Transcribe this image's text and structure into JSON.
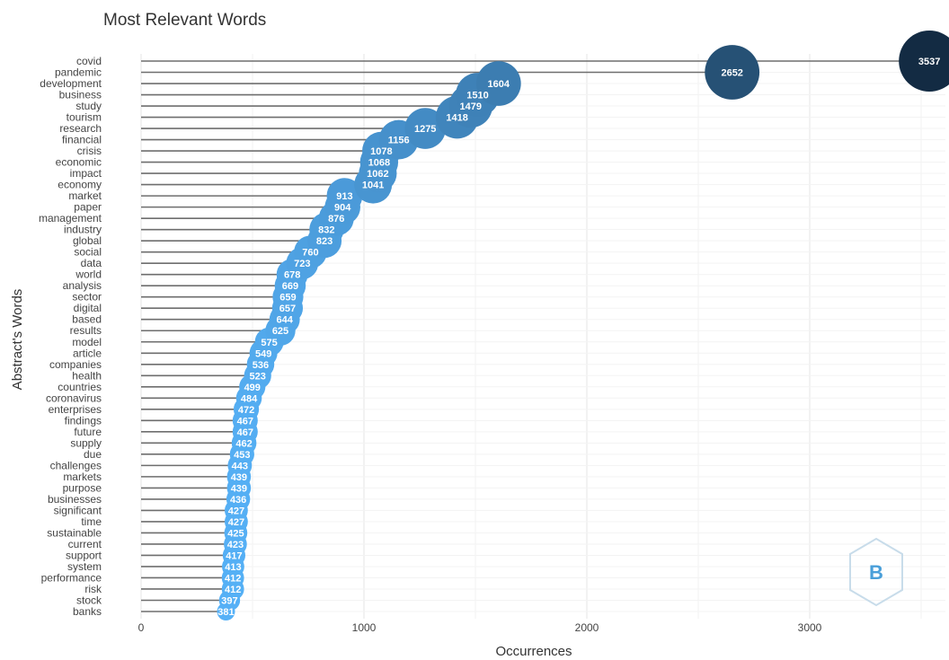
{
  "chart_data": {
    "type": "scatter",
    "title": "Most Relevant Words",
    "xlabel": "Occurrences",
    "ylabel": "Abstract's Words",
    "xlim": [
      0,
      3600
    ],
    "xticks": [
      0,
      1000,
      2000,
      3000
    ],
    "grid": true,
    "legend": "none",
    "categories": [
      "covid",
      "pandemic",
      "development",
      "business",
      "study",
      "tourism",
      "research",
      "financial",
      "crisis",
      "economic",
      "impact",
      "economy",
      "market",
      "paper",
      "management",
      "industry",
      "global",
      "social",
      "data",
      "world",
      "analysis",
      "sector",
      "digital",
      "based",
      "results",
      "model",
      "article",
      "companies",
      "health",
      "countries",
      "coronavirus",
      "enterprises",
      "findings",
      "future",
      "supply",
      "due",
      "challenges",
      "markets",
      "purpose",
      "businesses",
      "significant",
      "time",
      "sustainable",
      "current",
      "support",
      "system",
      "performance",
      "risk",
      "stock",
      "banks"
    ],
    "values": [
      3537,
      2652,
      1604,
      1510,
      1479,
      1418,
      1275,
      1156,
      1078,
      1068,
      1062,
      1041,
      913,
      904,
      876,
      832,
      823,
      760,
      723,
      678,
      669,
      659,
      657,
      644,
      625,
      575,
      549,
      536,
      523,
      499,
      484,
      472,
      467,
      467,
      462,
      453,
      443,
      439,
      439,
      436,
      427,
      427,
      425,
      423,
      417,
      413,
      412,
      412,
      397,
      381
    ],
    "color_low": "#56b1f7",
    "color_high": "#132b43"
  },
  "watermark": {
    "text": "B"
  }
}
